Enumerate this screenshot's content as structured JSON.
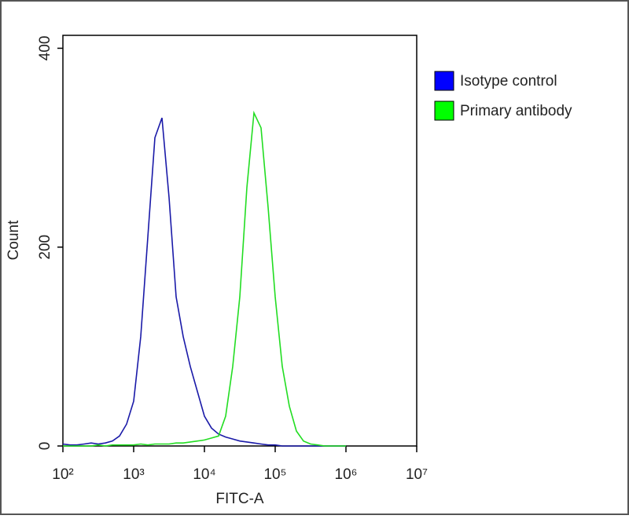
{
  "chart_data": {
    "type": "line",
    "x_label": "FITC-A",
    "y_label": "Count",
    "x": [
      100,
      126,
      158,
      200,
      251,
      316,
      398,
      501,
      631,
      794,
      1000,
      1259,
      1585,
      1995,
      2512,
      3162,
      3981,
      5012,
      6310,
      7943,
      10000,
      12589,
      15849,
      19953,
      25119,
      31623,
      39811,
      50119,
      63096,
      79433,
      100000,
      125893,
      158489,
      199526,
      251189,
      316228,
      398107,
      501187,
      630957,
      794328,
      1000000
    ],
    "series": [
      {
        "name": "Isotype control",
        "color": "#1a1aa8",
        "legend_color": "#0000ff",
        "values": [
          2,
          1,
          1,
          2,
          3,
          2,
          3,
          5,
          10,
          22,
          45,
          110,
          210,
          310,
          330,
          250,
          150,
          110,
          80,
          55,
          30,
          18,
          12,
          9,
          7,
          5,
          4,
          3,
          2,
          1,
          1,
          0,
          0,
          0,
          0,
          0,
          0,
          0,
          0,
          0,
          0
        ]
      },
      {
        "name": "Primary antibody",
        "color": "#22dd22",
        "legend_color": "#00ff00",
        "values": [
          0,
          0,
          0,
          0,
          0,
          1,
          0,
          1,
          1,
          1,
          1,
          2,
          1,
          2,
          2,
          2,
          3,
          3,
          4,
          5,
          6,
          8,
          10,
          30,
          80,
          150,
          260,
          335,
          320,
          240,
          150,
          80,
          40,
          15,
          5,
          2,
          1,
          0,
          0,
          0,
          0
        ]
      }
    ],
    "x_log": true,
    "xlim": [
      100,
      10000000
    ],
    "xticks": [
      {
        "value": 100,
        "label": "10²"
      },
      {
        "value": 1000,
        "label": "10³"
      },
      {
        "value": 10000,
        "label": "10⁴"
      },
      {
        "value": 100000,
        "label": "10⁵"
      },
      {
        "value": 1000000,
        "label": "10⁶"
      },
      {
        "value": 10000000,
        "label": "10⁷"
      }
    ],
    "ylim": [
      0,
      413
    ],
    "yticks": [
      0,
      200,
      400
    ],
    "legend": "right"
  }
}
